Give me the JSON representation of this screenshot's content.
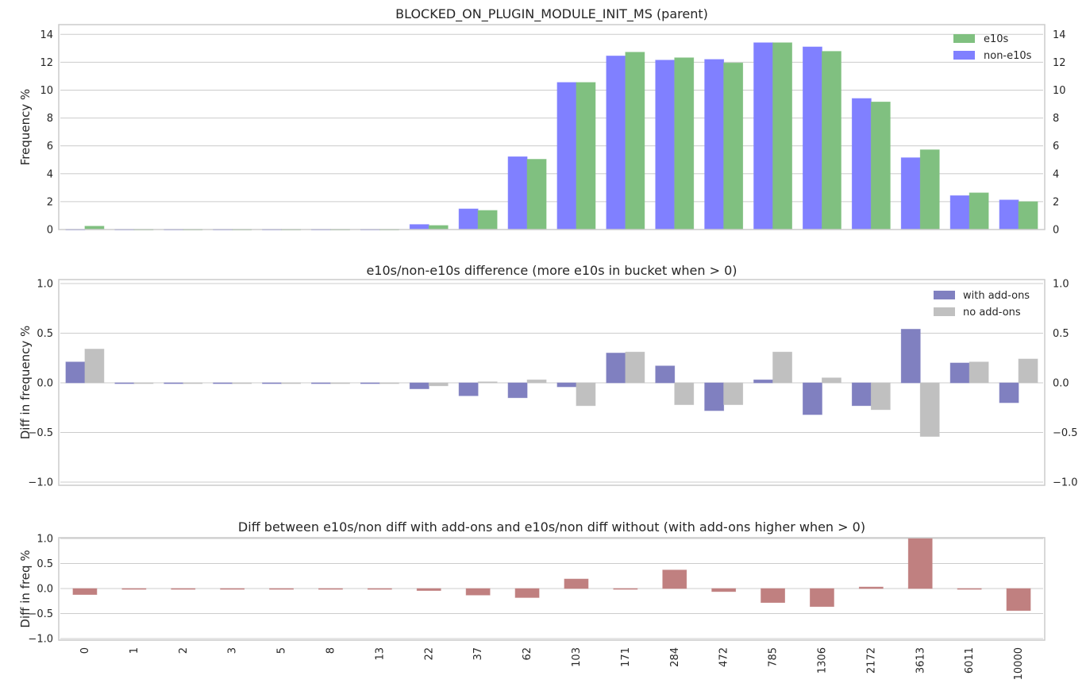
{
  "chart_data": [
    {
      "type": "bar",
      "title": "BLOCKED_ON_PLUGIN_MODULE_INIT_MS (parent)",
      "xlabel": "",
      "ylabel": "Frequency %",
      "ylim": [
        0,
        14.3
      ],
      "yticks": [
        0,
        2,
        4,
        6,
        8,
        10,
        12,
        14
      ],
      "yticks_mirrored_right": true,
      "grid": "horizontal",
      "legend": "top-right",
      "categories": [
        "0",
        "1",
        "2",
        "3",
        "5",
        "8",
        "13",
        "22",
        "37",
        "62",
        "103",
        "171",
        "284",
        "472",
        "785",
        "1306",
        "2172",
        "3613",
        "6011",
        "10000"
      ],
      "series": [
        {
          "name": "non-e10s",
          "color": "#8080ff",
          "values": [
            0.02,
            0.02,
            0.02,
            0.02,
            0.02,
            0.02,
            0.02,
            0.36,
            1.48,
            5.22,
            10.55,
            12.45,
            12.15,
            12.2,
            13.4,
            13.1,
            9.4,
            5.15,
            2.43,
            2.12
          ]
        },
        {
          "name": "e10s",
          "color": "#80c080",
          "values": [
            0.24,
            0.02,
            0.02,
            0.02,
            0.02,
            0.02,
            0.02,
            0.29,
            1.37,
            5.04,
            10.55,
            12.72,
            12.32,
            11.95,
            13.4,
            12.78,
            9.15,
            5.72,
            2.63,
            2.0
          ]
        }
      ],
      "legend_order": [
        "e10s",
        "non-e10s"
      ]
    },
    {
      "type": "bar",
      "title": "e10s/non-e10s difference (more e10s in bucket when > 0)",
      "xlabel": "",
      "ylabel": "Diff in frequency %",
      "ylim": [
        -1.0,
        1.0
      ],
      "yticks": [
        -1.0,
        -0.5,
        0.0,
        0.5,
        1.0
      ],
      "yticks_mirrored_right": true,
      "grid": "horizontal",
      "legend": "top-right",
      "categories": [
        "0",
        "1",
        "2",
        "3",
        "5",
        "8",
        "13",
        "22",
        "37",
        "62",
        "103",
        "171",
        "284",
        "472",
        "785",
        "1306",
        "2172",
        "3613",
        "6011",
        "10000"
      ],
      "series": [
        {
          "name": "with add-ons",
          "color": "#8080c0",
          "values": [
            0.21,
            0,
            0,
            0,
            0,
            0,
            0,
            -0.06,
            -0.13,
            -0.15,
            -0.04,
            0.3,
            0.17,
            -0.28,
            0.03,
            -0.32,
            -0.23,
            0.54,
            0.2,
            -0.2
          ]
        },
        {
          "name": "no add-ons",
          "color": "#c0c0c0",
          "values": [
            0.34,
            0,
            0,
            0,
            0,
            0,
            0,
            -0.03,
            0.01,
            0.03,
            -0.23,
            0.31,
            -0.22,
            -0.22,
            0.31,
            0.05,
            -0.27,
            -0.54,
            0.21,
            0.24
          ]
        }
      ]
    },
    {
      "type": "bar",
      "title": "Diff between e10s/non diff with add-ons and e10s/non diff without (with add-ons higher when > 0)",
      "xlabel": "",
      "ylabel": "Diff in freq %",
      "ylim": [
        -1.0,
        1.0
      ],
      "yticks": [
        -1.0,
        -0.5,
        0.0,
        0.5,
        1.0
      ],
      "yticks_mirrored_right": false,
      "grid": "horizontal",
      "legend": "none",
      "categories": [
        "0",
        "1",
        "2",
        "3",
        "5",
        "8",
        "13",
        "22",
        "37",
        "62",
        "103",
        "171",
        "284",
        "472",
        "785",
        "1306",
        "2172",
        "3613",
        "6011",
        "10000"
      ],
      "series": [
        {
          "name": "",
          "color": "#c08080",
          "values": [
            -0.12,
            0,
            0,
            0,
            0,
            0,
            0,
            -0.04,
            -0.13,
            -0.18,
            0.19,
            -0.01,
            0.37,
            -0.06,
            -0.28,
            -0.36,
            0.03,
            1.0,
            -0.01,
            -0.44
          ]
        }
      ]
    }
  ]
}
